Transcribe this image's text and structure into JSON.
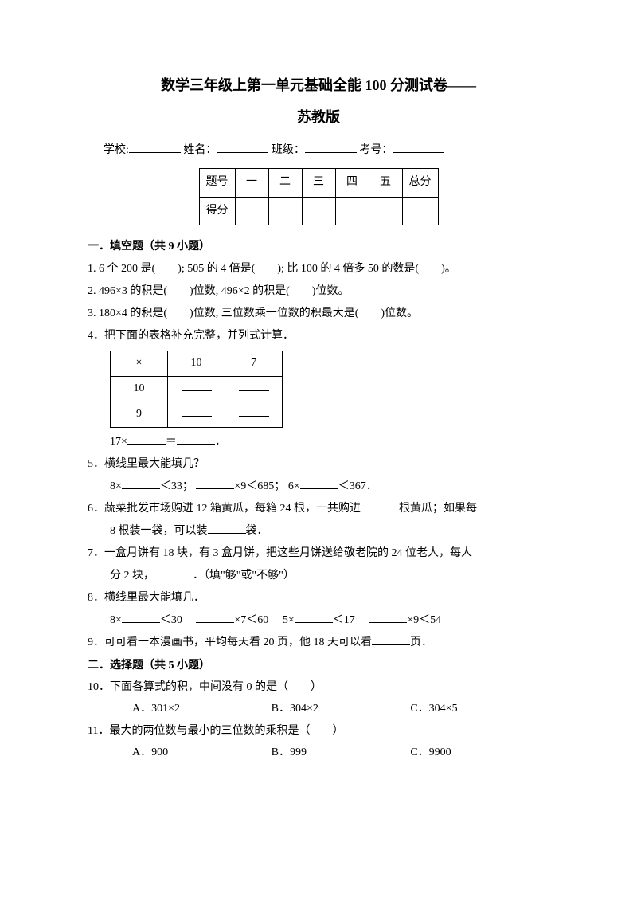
{
  "title": {
    "line1": "数学三年级上第一单元基础全能 100 分测试卷——",
    "line2": "苏教版"
  },
  "info": {
    "school": "学校:",
    "name": "姓名：",
    "class": "班级：",
    "exam_no": "考号："
  },
  "score_table": {
    "headers": [
      "题号",
      "一",
      "二",
      "三",
      "四",
      "五",
      "总分"
    ],
    "score_label": "得分"
  },
  "section1": {
    "header": "一．填空题（共 9 小题）",
    "q1": "1. 6 个 200 是(　　); 505 的 4 倍是(　　); 比 100 的 4 倍多 50 的数是(　　)。",
    "q2": "2. 496×3 的积是(　　)位数, 496×2 的积是(　　)位数。",
    "q3": "3. 180×4 的积是(　　)位数, 三位数乘一位数的积最大是(　　)位数。",
    "q4": {
      "text": "4．把下面的表格补充完整，并列式计算．",
      "mult": "×",
      "col1": "10",
      "col2": "7",
      "row1": "10",
      "row2": "9",
      "expr_pre": "17×",
      "expr_mid": "＝",
      "expr_end": "．"
    },
    "q5": {
      "text": "5．横线里最大能填几？",
      "line": "8×",
      "lt33": "＜33；",
      "times9": "×9＜685；",
      "six": "6×",
      "lt367": "＜367．"
    },
    "q6": {
      "line1": "6．蔬菜批发市场购进 12 箱黄瓜，每箱 24 根，一共购进",
      "line1_end": "根黄瓜；如果每",
      "line2_pre": "8 根装一袋，可以装",
      "line2_end": "袋．"
    },
    "q7": {
      "line1": "7．一盒月饼有 18 块，有 3 盒月饼，把这些月饼送给敬老院的 24 位老人，每人",
      "line2_pre": "分 2 块，",
      "line2_end": "．（填\"够\"或\"不够\"）"
    },
    "q8": {
      "text": "8．横线里最大能填几．",
      "p1_pre": "8×",
      "p1_end": "＜30　",
      "p2_end": "×7＜60　",
      "p3_pre": "5×",
      "p3_end": "＜17　",
      "p4_end": "×9＜54"
    },
    "q9": {
      "pre": "9．可可看一本漫画书，平均每天看 20 页，他 18 天可以看",
      "end": "页．"
    }
  },
  "section2": {
    "header": "二．选择题（共 5 小题）",
    "q10": {
      "text": "10．下面各算式的积，中间没有 0 的是（　　）",
      "a": "A．301×2",
      "b": "B．304×2",
      "c": "C．304×5"
    },
    "q11": {
      "text": "11．最大的两位数与最小的三位数的乘积是（　　）",
      "a": "A．900",
      "b": "B．999",
      "c": "C．9900"
    }
  }
}
